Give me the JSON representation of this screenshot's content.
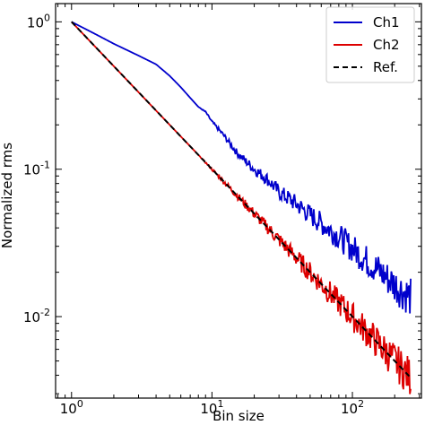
{
  "chart_data": {
    "type": "line",
    "xlabel": "Bin size",
    "ylabel": "Normalized rms",
    "xscale": "log",
    "yscale": "log",
    "xlim": [
      0.77,
      310
    ],
    "ylim": [
      0.0028,
      1.33
    ],
    "grid": false,
    "legend_position": "top-right",
    "x_tick_labels": [
      {
        "value": 1,
        "base": "10",
        "exp": "0"
      },
      {
        "value": 10,
        "base": "10",
        "exp": "1"
      },
      {
        "value": 100,
        "base": "10",
        "exp": "2"
      }
    ],
    "y_tick_labels": [
      {
        "value": 1,
        "base": "10",
        "exp": "0"
      },
      {
        "value": 0.1,
        "base": "10",
        "exp": "-1"
      },
      {
        "value": 0.01,
        "base": "10",
        "exp": "-2"
      }
    ],
    "series": [
      {
        "name": "Ch1",
        "color": "#0000cc",
        "style": "solid",
        "points": [
          [
            1,
            1.0
          ],
          [
            1.5,
            0.82
          ],
          [
            2,
            0.71
          ],
          [
            3,
            0.59
          ],
          [
            4,
            0.515
          ],
          [
            5,
            0.43
          ],
          [
            6,
            0.36
          ],
          [
            7,
            0.305
          ],
          [
            8,
            0.265
          ],
          [
            9,
            0.245
          ],
          [
            10,
            0.21
          ],
          [
            12,
            0.172
          ],
          [
            15,
            0.13
          ],
          [
            20,
            0.1
          ],
          [
            25,
            0.085
          ],
          [
            30,
            0.07
          ],
          [
            40,
            0.058
          ],
          [
            50,
            0.049
          ],
          [
            60,
            0.043
          ],
          [
            80,
            0.035
          ],
          [
            100,
            0.029
          ],
          [
            120,
            0.025
          ],
          [
            150,
            0.021
          ],
          [
            200,
            0.0165
          ],
          [
            260,
            0.0135
          ]
        ]
      },
      {
        "name": "Ch2",
        "color": "#dd0000",
        "style": "solid",
        "points": [
          [
            1,
            1.0
          ],
          [
            2,
            0.5
          ],
          [
            3,
            0.333
          ],
          [
            5,
            0.2
          ],
          [
            7,
            0.143
          ],
          [
            10,
            0.1
          ],
          [
            15,
            0.0667
          ],
          [
            20,
            0.05
          ],
          [
            30,
            0.0333
          ],
          [
            40,
            0.025
          ],
          [
            60,
            0.0167
          ],
          [
            80,
            0.0125
          ],
          [
            100,
            0.01
          ],
          [
            150,
            0.00667
          ],
          [
            200,
            0.005
          ],
          [
            260,
            0.00385
          ]
        ]
      },
      {
        "name": "Ref.",
        "color": "#000000",
        "style": "dashed",
        "points": [
          [
            1,
            1.0
          ],
          [
            260,
            0.00385
          ]
        ]
      }
    ]
  }
}
